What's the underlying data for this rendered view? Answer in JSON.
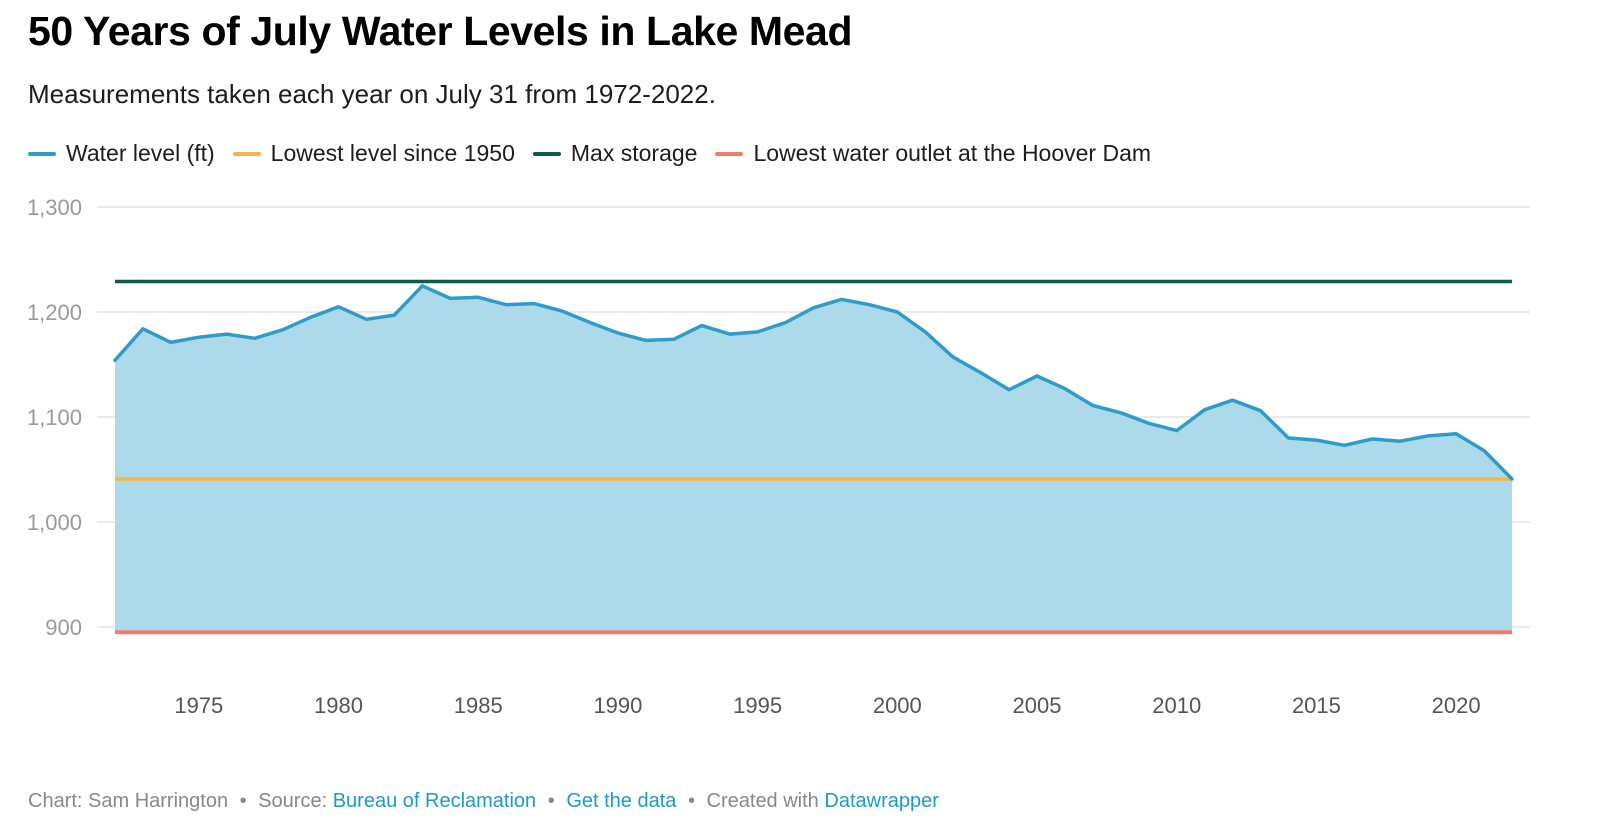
{
  "header": {
    "title": "50 Years of July Water Levels in Lake Mead",
    "subtitle": "Measurements taken each year on July 31 from 1972-2022."
  },
  "legend": [
    {
      "label": "Water level (ft)",
      "color": "#2e9ccb"
    },
    {
      "label": "Lowest level since 1950",
      "color": "#f4b447"
    },
    {
      "label": "Max storage",
      "color": "#0d5c45"
    },
    {
      "label": "Lowest water outlet at the Hoover Dam",
      "color": "#f07c6c"
    }
  ],
  "chart_data": {
    "type": "area",
    "x": [
      1972,
      1973,
      1974,
      1975,
      1976,
      1977,
      1978,
      1979,
      1980,
      1981,
      1982,
      1983,
      1984,
      1985,
      1986,
      1987,
      1988,
      1989,
      1990,
      1991,
      1992,
      1993,
      1994,
      1995,
      1996,
      1997,
      1998,
      1999,
      2000,
      2001,
      2002,
      2003,
      2004,
      2005,
      2006,
      2007,
      2008,
      2009,
      2010,
      2011,
      2012,
      2013,
      2014,
      2015,
      2016,
      2017,
      2018,
      2019,
      2020,
      2021,
      2022
    ],
    "series": [
      {
        "name": "Water level (ft)",
        "values": [
          1154,
          1184,
          1171,
          1176,
          1179,
          1175,
          1183,
          1195,
          1205,
          1193,
          1197,
          1225,
          1213,
          1214,
          1207,
          1208,
          1201,
          1190,
          1180,
          1173,
          1174,
          1187,
          1179,
          1181,
          1190,
          1204,
          1212,
          1207,
          1200,
          1181,
          1157,
          1142,
          1126,
          1139,
          1127,
          1111,
          1104,
          1094,
          1087,
          1107,
          1116,
          1106,
          1080,
          1078,
          1073,
          1079,
          1077,
          1082,
          1084,
          1068,
          1041
        ]
      },
      {
        "name": "Lowest level since 1950",
        "value": 1041
      },
      {
        "name": "Max storage",
        "value": 1229
      },
      {
        "name": "Lowest water outlet at the Hoover Dam",
        "value": 895
      }
    ],
    "xticks": [
      1975,
      1980,
      1985,
      1990,
      1995,
      2000,
      2005,
      2010,
      2015,
      2020
    ],
    "yticks": [
      900,
      1000,
      1100,
      1200,
      1300
    ],
    "ytick_labels": [
      "900",
      "1,000",
      "1,100",
      "1,200",
      "1,300"
    ],
    "xlim": [
      1972,
      2022
    ],
    "ylim": [
      895,
      1300
    ],
    "grid": true,
    "xlabel": "",
    "ylabel": "",
    "colors": {
      "area_fill": "#acdaea",
      "grid": "#e3e3e3",
      "tick_text": "#9a9a9a"
    }
  },
  "footer": {
    "chart_credit": "Chart: Sam Harrington",
    "source_prefix": "Source:",
    "source_link": "Bureau of Reclamation",
    "data_link": "Get the data",
    "created_prefix": "Created with",
    "tool_link": "Datawrapper",
    "separator": "•"
  }
}
